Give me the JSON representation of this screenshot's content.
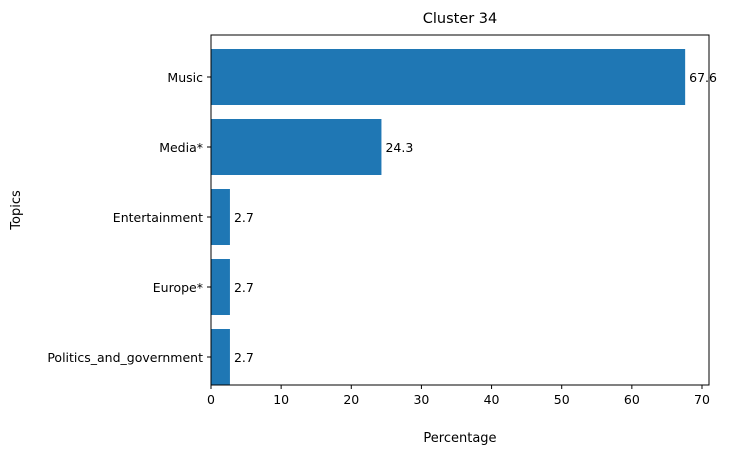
{
  "chart_data": {
    "type": "bar",
    "orientation": "horizontal",
    "title": "Cluster 34",
    "xlabel": "Percentage",
    "ylabel": "Topics",
    "categories": [
      "Music",
      "Media*",
      "Entertainment",
      "Europe*",
      "Politics_and_government"
    ],
    "values": [
      67.6,
      24.3,
      2.7,
      2.7,
      2.7
    ],
    "data_labels": [
      "67.6",
      "24.3",
      "2.7",
      "2.7",
      "2.7"
    ],
    "xlim": [
      0,
      71
    ],
    "xticks": [
      0,
      10,
      20,
      30,
      40,
      50,
      60,
      70
    ],
    "grid": false,
    "legend": "none",
    "bar_color": "#1f77b4"
  }
}
